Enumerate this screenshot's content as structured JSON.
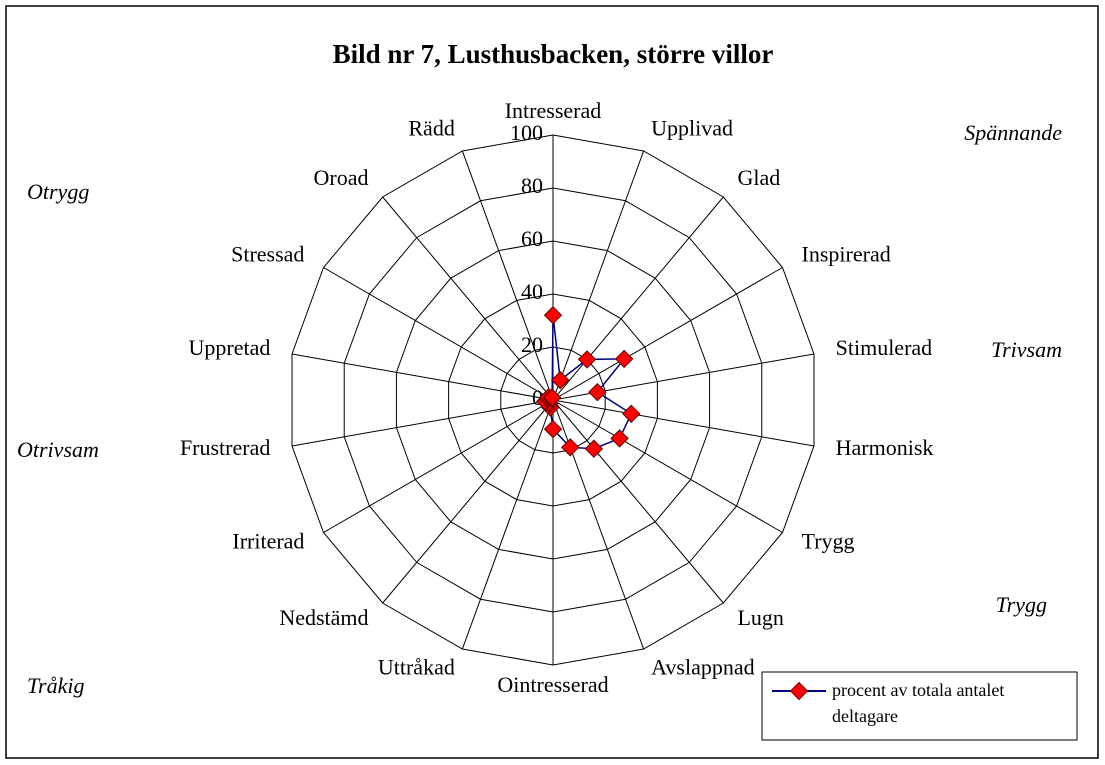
{
  "chart_data": {
    "type": "radar",
    "title": "Bild nr 7, Lusthusbacken, större villor",
    "categories": [
      "Intresserad",
      "Upplivad",
      "Glad",
      "Inspirerad",
      "Stimulerad",
      "Harmonisk",
      "Trygg",
      "Lugn",
      "Avslappnad",
      "Ointresserad",
      "Uttråkad",
      "Nedstämd",
      "Irriterad",
      "Frustrerad",
      "Uppretad",
      "Stressad",
      "Oroad",
      "Rädd"
    ],
    "series": [
      {
        "name": "procent av totala antalet deltagare",
        "color": "#000080",
        "marker_color": "#ff0000",
        "values": [
          32,
          8,
          20,
          31,
          17,
          30,
          29,
          24,
          19,
          11,
          3,
          2,
          2,
          3,
          2,
          2,
          1,
          1
        ]
      }
    ],
    "ylim": [
      0,
      100
    ],
    "yticks": [
      0,
      20,
      40,
      60,
      80,
      100
    ],
    "grid": true,
    "legend": "lower right",
    "annotations": [
      "Spännande",
      "Otrygg",
      "Trivsam",
      "Otrivsam",
      "Trygg",
      "Tråkig"
    ]
  }
}
